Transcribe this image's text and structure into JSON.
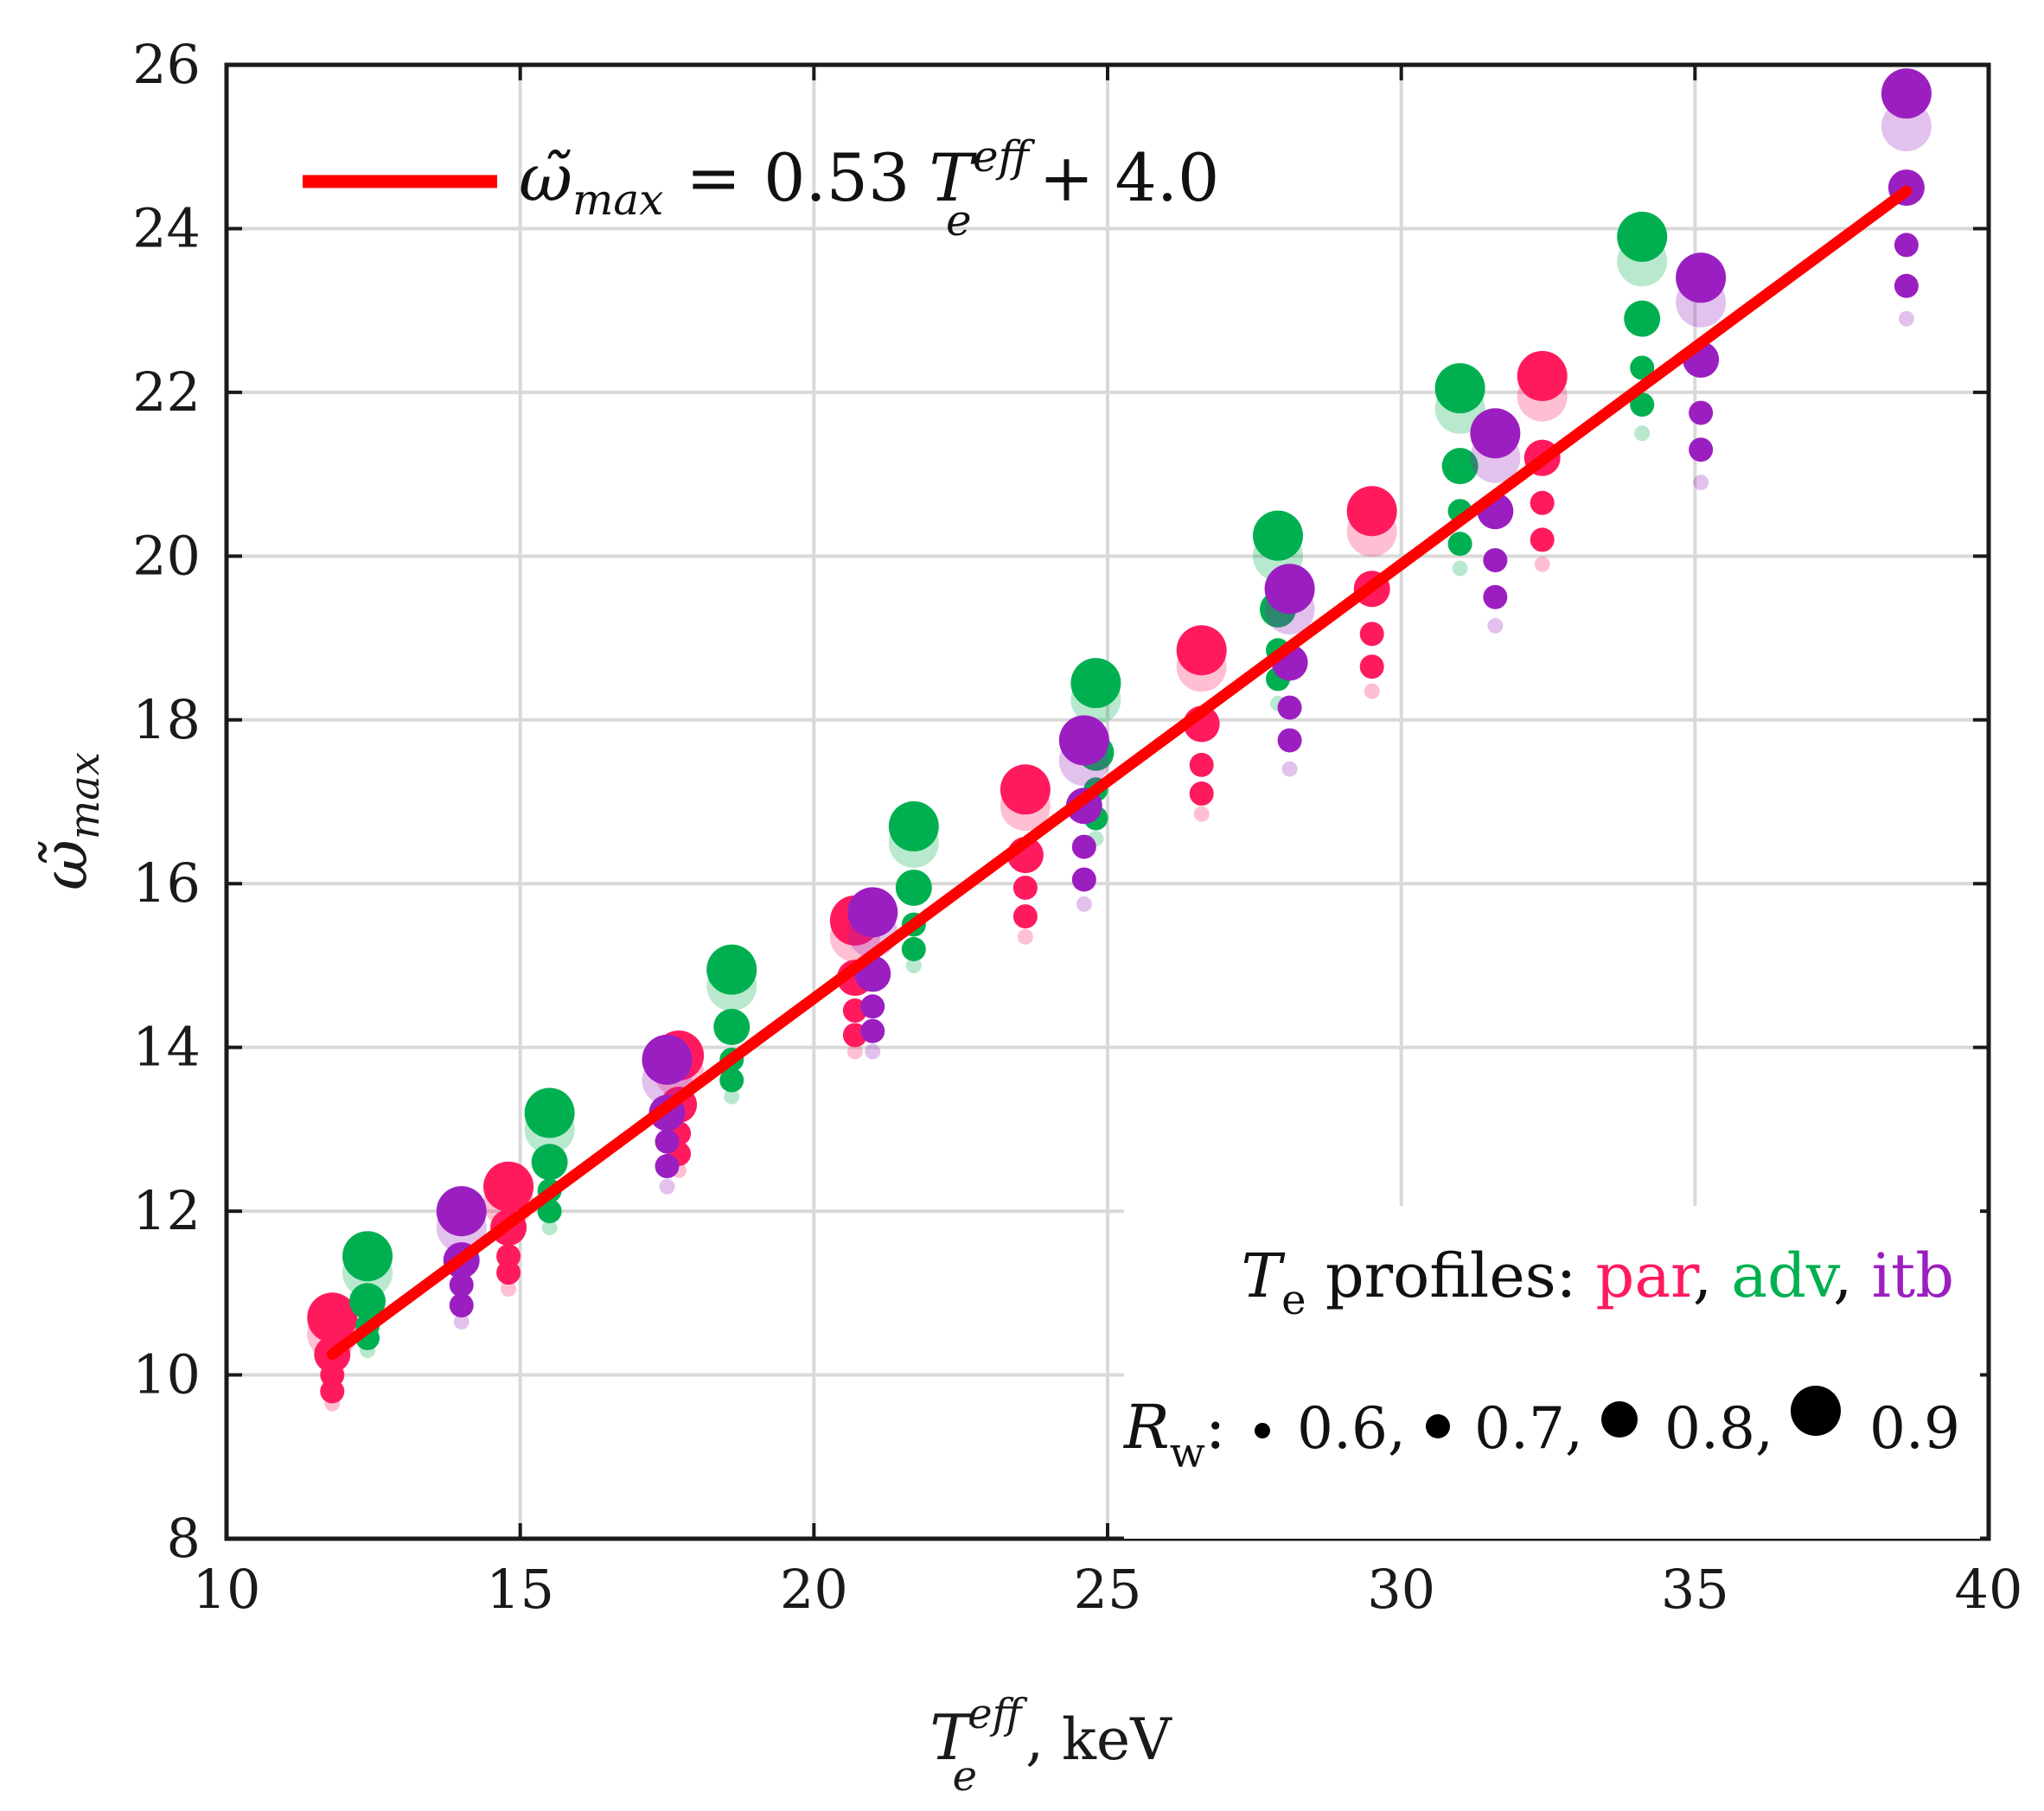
{
  "chart_data": {
    "type": "scatter",
    "title": "",
    "xlabel": {
      "base": "T",
      "sub": "e",
      "sup": "eff",
      "suffix": ", keV"
    },
    "ylabel": {
      "symbol": "ω̃",
      "sub": "max"
    },
    "xlim": [
      10,
      40
    ],
    "ylim": [
      8,
      26
    ],
    "xticks": [
      10,
      15,
      20,
      25,
      30,
      35,
      40
    ],
    "yticks": [
      8,
      10,
      12,
      14,
      16,
      18,
      20,
      22,
      24,
      26
    ],
    "grid": true,
    "fit_line": {
      "color": "#ff0000",
      "slope": 0.53,
      "intercept": 4.0,
      "x_range": [
        11.8,
        38.6
      ],
      "label": {
        "lhs_symbol": "ω̃",
        "lhs_sub": "max",
        "equals": "=",
        "coef": "0.53",
        "var": "T",
        "var_sub": "e",
        "var_sup": "eff",
        "plus": "+ 4.0"
      }
    },
    "series": [
      {
        "name": "par",
        "color": "#ff1a5e",
        "points": [
          {
            "x": 11.8,
            "y": 10.7,
            "rw": 0.9
          },
          {
            "x": 11.8,
            "y": 10.5,
            "rw": 0.9,
            "faded": true
          },
          {
            "x": 11.8,
            "y": 10.25,
            "rw": 0.8
          },
          {
            "x": 11.8,
            "y": 10.0,
            "rw": 0.7
          },
          {
            "x": 11.8,
            "y": 9.8,
            "rw": 0.7
          },
          {
            "x": 11.8,
            "y": 9.65,
            "rw": 0.6,
            "faded": true
          },
          {
            "x": 14.8,
            "y": 12.3,
            "rw": 0.9
          },
          {
            "x": 14.8,
            "y": 12.1,
            "rw": 0.9,
            "faded": true
          },
          {
            "x": 14.8,
            "y": 11.8,
            "rw": 0.8
          },
          {
            "x": 14.8,
            "y": 11.45,
            "rw": 0.7
          },
          {
            "x": 14.8,
            "y": 11.25,
            "rw": 0.7
          },
          {
            "x": 14.8,
            "y": 11.05,
            "rw": 0.6,
            "faded": true
          },
          {
            "x": 17.7,
            "y": 13.9,
            "rw": 0.9
          },
          {
            "x": 17.7,
            "y": 13.7,
            "rw": 0.9,
            "faded": true
          },
          {
            "x": 17.7,
            "y": 13.3,
            "rw": 0.8
          },
          {
            "x": 17.7,
            "y": 12.95,
            "rw": 0.7
          },
          {
            "x": 17.7,
            "y": 12.7,
            "rw": 0.7
          },
          {
            "x": 17.7,
            "y": 12.5,
            "rw": 0.6,
            "faded": true
          },
          {
            "x": 20.7,
            "y": 15.55,
            "rw": 0.9
          },
          {
            "x": 20.7,
            "y": 15.35,
            "rw": 0.9,
            "faded": true
          },
          {
            "x": 20.7,
            "y": 14.85,
            "rw": 0.8
          },
          {
            "x": 20.7,
            "y": 14.45,
            "rw": 0.7
          },
          {
            "x": 20.7,
            "y": 14.15,
            "rw": 0.7
          },
          {
            "x": 20.7,
            "y": 13.95,
            "rw": 0.6,
            "faded": true
          },
          {
            "x": 23.6,
            "y": 17.15,
            "rw": 0.9
          },
          {
            "x": 23.6,
            "y": 16.95,
            "rw": 0.9,
            "faded": true
          },
          {
            "x": 23.6,
            "y": 16.35,
            "rw": 0.8
          },
          {
            "x": 23.6,
            "y": 15.95,
            "rw": 0.7
          },
          {
            "x": 23.6,
            "y": 15.6,
            "rw": 0.7
          },
          {
            "x": 23.6,
            "y": 15.35,
            "rw": 0.6,
            "faded": true
          },
          {
            "x": 26.6,
            "y": 18.85,
            "rw": 0.9
          },
          {
            "x": 26.6,
            "y": 18.65,
            "rw": 0.9,
            "faded": true
          },
          {
            "x": 26.6,
            "y": 17.95,
            "rw": 0.8
          },
          {
            "x": 26.6,
            "y": 17.45,
            "rw": 0.7
          },
          {
            "x": 26.6,
            "y": 17.1,
            "rw": 0.7
          },
          {
            "x": 26.6,
            "y": 16.85,
            "rw": 0.6,
            "faded": true
          },
          {
            "x": 29.5,
            "y": 20.55,
            "rw": 0.9
          },
          {
            "x": 29.5,
            "y": 20.3,
            "rw": 0.9,
            "faded": true
          },
          {
            "x": 29.5,
            "y": 19.6,
            "rw": 0.8
          },
          {
            "x": 29.5,
            "y": 19.05,
            "rw": 0.7
          },
          {
            "x": 29.5,
            "y": 18.65,
            "rw": 0.7
          },
          {
            "x": 29.5,
            "y": 18.35,
            "rw": 0.6,
            "faded": true
          },
          {
            "x": 32.4,
            "y": 22.2,
            "rw": 0.9
          },
          {
            "x": 32.4,
            "y": 21.95,
            "rw": 0.9,
            "faded": true
          },
          {
            "x": 32.4,
            "y": 21.2,
            "rw": 0.8
          },
          {
            "x": 32.4,
            "y": 20.65,
            "rw": 0.7
          },
          {
            "x": 32.4,
            "y": 20.2,
            "rw": 0.7
          },
          {
            "x": 32.4,
            "y": 19.9,
            "rw": 0.6,
            "faded": true
          }
        ]
      },
      {
        "name": "adv",
        "color": "#00b050",
        "points": [
          {
            "x": 12.4,
            "y": 11.45,
            "rw": 0.9
          },
          {
            "x": 12.4,
            "y": 11.25,
            "rw": 0.9,
            "faded": true
          },
          {
            "x": 12.4,
            "y": 10.9,
            "rw": 0.8
          },
          {
            "x": 12.4,
            "y": 10.6,
            "rw": 0.7
          },
          {
            "x": 12.4,
            "y": 10.45,
            "rw": 0.7
          },
          {
            "x": 12.4,
            "y": 10.3,
            "rw": 0.6,
            "faded": true
          },
          {
            "x": 15.5,
            "y": 13.2,
            "rw": 0.9
          },
          {
            "x": 15.5,
            "y": 13.0,
            "rw": 0.9,
            "faded": true
          },
          {
            "x": 15.5,
            "y": 12.6,
            "rw": 0.8
          },
          {
            "x": 15.5,
            "y": 12.25,
            "rw": 0.7
          },
          {
            "x": 15.5,
            "y": 12.0,
            "rw": 0.7
          },
          {
            "x": 15.5,
            "y": 11.8,
            "rw": 0.6,
            "faded": true
          },
          {
            "x": 18.6,
            "y": 14.95,
            "rw": 0.9
          },
          {
            "x": 18.6,
            "y": 14.75,
            "rw": 0.9,
            "faded": true
          },
          {
            "x": 18.6,
            "y": 14.25,
            "rw": 0.8
          },
          {
            "x": 18.6,
            "y": 13.85,
            "rw": 0.7
          },
          {
            "x": 18.6,
            "y": 13.6,
            "rw": 0.7
          },
          {
            "x": 18.6,
            "y": 13.4,
            "rw": 0.6,
            "faded": true
          },
          {
            "x": 21.7,
            "y": 16.7,
            "rw": 0.9
          },
          {
            "x": 21.7,
            "y": 16.5,
            "rw": 0.9,
            "faded": true
          },
          {
            "x": 21.7,
            "y": 15.95,
            "rw": 0.8
          },
          {
            "x": 21.7,
            "y": 15.5,
            "rw": 0.7
          },
          {
            "x": 21.7,
            "y": 15.2,
            "rw": 0.7
          },
          {
            "x": 21.7,
            "y": 15.0,
            "rw": 0.6,
            "faded": true
          },
          {
            "x": 24.8,
            "y": 18.45,
            "rw": 0.9
          },
          {
            "x": 24.8,
            "y": 18.25,
            "rw": 0.9,
            "faded": true
          },
          {
            "x": 24.8,
            "y": 17.6,
            "rw": 0.8
          },
          {
            "x": 24.8,
            "y": 17.15,
            "rw": 0.7
          },
          {
            "x": 24.8,
            "y": 16.8,
            "rw": 0.7
          },
          {
            "x": 24.8,
            "y": 16.55,
            "rw": 0.6,
            "faded": true
          },
          {
            "x": 27.9,
            "y": 20.25,
            "rw": 0.9
          },
          {
            "x": 27.9,
            "y": 20.0,
            "rw": 0.9,
            "faded": true
          },
          {
            "x": 27.9,
            "y": 19.35,
            "rw": 0.8
          },
          {
            "x": 27.9,
            "y": 18.85,
            "rw": 0.7
          },
          {
            "x": 27.9,
            "y": 18.5,
            "rw": 0.7
          },
          {
            "x": 27.9,
            "y": 18.2,
            "rw": 0.6,
            "faded": true
          },
          {
            "x": 31.0,
            "y": 22.05,
            "rw": 0.9
          },
          {
            "x": 31.0,
            "y": 21.8,
            "rw": 0.9,
            "faded": true
          },
          {
            "x": 31.0,
            "y": 21.1,
            "rw": 0.8
          },
          {
            "x": 31.0,
            "y": 20.55,
            "rw": 0.7
          },
          {
            "x": 31.0,
            "y": 20.15,
            "rw": 0.7
          },
          {
            "x": 31.0,
            "y": 19.85,
            "rw": 0.6,
            "faded": true
          },
          {
            "x": 34.1,
            "y": 23.9,
            "rw": 0.9
          },
          {
            "x": 34.1,
            "y": 23.6,
            "rw": 0.9,
            "faded": true
          },
          {
            "x": 34.1,
            "y": 22.9,
            "rw": 0.8
          },
          {
            "x": 34.1,
            "y": 22.3,
            "rw": 0.7
          },
          {
            "x": 34.1,
            "y": 21.85,
            "rw": 0.7
          },
          {
            "x": 34.1,
            "y": 21.5,
            "rw": 0.6,
            "faded": true
          }
        ]
      },
      {
        "name": "itb",
        "color": "#9b1fc0",
        "points": [
          {
            "x": 14.0,
            "y": 12.0,
            "rw": 0.9
          },
          {
            "x": 14.0,
            "y": 11.8,
            "rw": 0.9,
            "faded": true
          },
          {
            "x": 14.0,
            "y": 11.4,
            "rw": 0.8
          },
          {
            "x": 14.0,
            "y": 11.1,
            "rw": 0.7
          },
          {
            "x": 14.0,
            "y": 10.85,
            "rw": 0.7
          },
          {
            "x": 14.0,
            "y": 10.65,
            "rw": 0.6,
            "faded": true
          },
          {
            "x": 17.5,
            "y": 13.85,
            "rw": 0.9
          },
          {
            "x": 17.5,
            "y": 13.6,
            "rw": 0.9,
            "faded": true
          },
          {
            "x": 17.5,
            "y": 13.2,
            "rw": 0.8
          },
          {
            "x": 17.5,
            "y": 12.85,
            "rw": 0.7
          },
          {
            "x": 17.5,
            "y": 12.55,
            "rw": 0.7
          },
          {
            "x": 17.5,
            "y": 12.3,
            "rw": 0.6,
            "faded": true
          },
          {
            "x": 21.0,
            "y": 15.65,
            "rw": 0.9
          },
          {
            "x": 21.0,
            "y": 15.4,
            "rw": 0.9,
            "faded": true
          },
          {
            "x": 21.0,
            "y": 14.9,
            "rw": 0.8
          },
          {
            "x": 21.0,
            "y": 14.5,
            "rw": 0.7
          },
          {
            "x": 21.0,
            "y": 14.2,
            "rw": 0.7
          },
          {
            "x": 21.0,
            "y": 13.95,
            "rw": 0.6,
            "faded": true
          },
          {
            "x": 24.6,
            "y": 17.75,
            "rw": 0.9
          },
          {
            "x": 24.6,
            "y": 17.5,
            "rw": 0.9,
            "faded": true
          },
          {
            "x": 24.6,
            "y": 16.95,
            "rw": 0.8
          },
          {
            "x": 24.6,
            "y": 16.45,
            "rw": 0.7
          },
          {
            "x": 24.6,
            "y": 16.05,
            "rw": 0.7
          },
          {
            "x": 24.6,
            "y": 15.75,
            "rw": 0.6,
            "faded": true
          },
          {
            "x": 28.1,
            "y": 19.6,
            "rw": 0.9
          },
          {
            "x": 28.1,
            "y": 19.35,
            "rw": 0.9,
            "faded": true
          },
          {
            "x": 28.1,
            "y": 18.7,
            "rw": 0.8
          },
          {
            "x": 28.1,
            "y": 18.15,
            "rw": 0.7
          },
          {
            "x": 28.1,
            "y": 17.75,
            "rw": 0.7
          },
          {
            "x": 28.1,
            "y": 17.4,
            "rw": 0.6,
            "faded": true
          },
          {
            "x": 31.6,
            "y": 21.5,
            "rw": 0.9
          },
          {
            "x": 31.6,
            "y": 21.2,
            "rw": 0.9,
            "faded": true
          },
          {
            "x": 31.6,
            "y": 20.55,
            "rw": 0.8
          },
          {
            "x": 31.6,
            "y": 19.95,
            "rw": 0.7
          },
          {
            "x": 31.6,
            "y": 19.5,
            "rw": 0.7
          },
          {
            "x": 31.6,
            "y": 19.15,
            "rw": 0.6,
            "faded": true
          },
          {
            "x": 35.1,
            "y": 23.4,
            "rw": 0.9
          },
          {
            "x": 35.1,
            "y": 23.1,
            "rw": 0.9,
            "faded": true
          },
          {
            "x": 35.1,
            "y": 22.4,
            "rw": 0.8
          },
          {
            "x": 35.1,
            "y": 21.75,
            "rw": 0.7
          },
          {
            "x": 35.1,
            "y": 21.3,
            "rw": 0.7
          },
          {
            "x": 35.1,
            "y": 20.9,
            "rw": 0.6,
            "faded": true
          },
          {
            "x": 38.6,
            "y": 25.65,
            "rw": 0.9
          },
          {
            "x": 38.6,
            "y": 25.25,
            "rw": 0.9,
            "faded": true
          },
          {
            "x": 38.6,
            "y": 24.5,
            "rw": 0.8
          },
          {
            "x": 38.6,
            "y": 23.8,
            "rw": 0.7
          },
          {
            "x": 38.6,
            "y": 23.3,
            "rw": 0.7
          },
          {
            "x": 38.6,
            "y": 22.9,
            "rw": 0.6,
            "faded": true
          }
        ]
      }
    ],
    "profile_legend": {
      "prefix": "T",
      "prefix_sub": "e",
      "label": " profiles: ",
      "items": [
        {
          "name": "par",
          "color": "#ff1a5e",
          "sep": ", "
        },
        {
          "name": "adv",
          "color": "#00b050",
          "sep": ", "
        },
        {
          "name": "itb",
          "color": "#9b1fc0",
          "sep": ""
        }
      ]
    },
    "size_legend": {
      "prefix": "R",
      "prefix_sub": "w",
      "colon": ":",
      "marker_color": "#000000",
      "items": [
        {
          "rw": 0.6,
          "label": "0.6,"
        },
        {
          "rw": 0.7,
          "label": "0.7,"
        },
        {
          "rw": 0.8,
          "label": "0.8,"
        },
        {
          "rw": 0.9,
          "label": "0.9"
        }
      ]
    },
    "legend_position": "top-left (fit line), bottom-right (profiles and marker sizes)"
  }
}
